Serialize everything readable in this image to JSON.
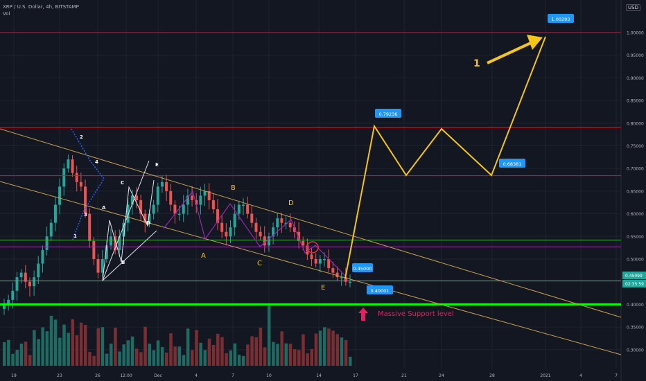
{
  "header": {
    "title": "XRP / U.S. Dollar, 4h, BITSTAMP",
    "vol_label": "Vol"
  },
  "currency_button": "USD",
  "colors": {
    "bg": "#131722",
    "up": "#26a69a",
    "down": "#ef5350",
    "red_line": "#b22833",
    "green_line": "#4caf50",
    "bright_green": "#00ff00",
    "yellow": "#f5c518",
    "channel": "#c8a14e",
    "label_bg": "#2196f3",
    "purple": "#9c27b0",
    "blue_dots": "#2962ff"
  },
  "chart_data": {
    "type": "candlestick",
    "y_ticks": [
      "1.00000",
      "0.95000",
      "0.90000",
      "0.85000",
      "0.80000",
      "0.75000",
      "0.70000",
      "0.65000",
      "0.60000",
      "0.55000",
      "0.50000",
      "0.45000",
      "0.40000",
      "0.35000",
      "0.30000"
    ],
    "y_range": [
      0.26,
      1.07
    ],
    "x_ticks": [
      "19",
      "23",
      "26",
      "12:00",
      "Dec",
      "4",
      "7",
      "10",
      "14",
      "17",
      "21",
      "24",
      "28",
      "2021",
      "4",
      "7"
    ],
    "horizontal_levels": [
      {
        "price": 1.0,
        "color": "red"
      },
      {
        "price": 0.79,
        "color": "red"
      },
      {
        "price": 0.684,
        "color": "red"
      },
      {
        "price": 0.542,
        "color": "green"
      },
      {
        "price": 0.527,
        "color": "purple"
      },
      {
        "price": 0.452,
        "color": "green"
      },
      {
        "price": 0.4,
        "color": "bright_green"
      }
    ],
    "price_labels": {
      "current": "0.45099",
      "countdown": "02:35:59"
    },
    "target_labels": [
      "1.00293",
      "0.79236",
      "0.68381",
      "0.40001",
      "0.45000"
    ],
    "annotations": {
      "support": "Massive Support level",
      "waves_left": [
        "1",
        "2",
        "3",
        "4"
      ],
      "waves_small": [
        "A",
        "B",
        "C",
        "D",
        "E"
      ],
      "waves_big": [
        "A",
        "B",
        "C",
        "D",
        "E"
      ],
      "arrow_label": "1"
    },
    "candles": [
      0.4,
      0.41,
      0.43,
      0.46,
      0.47,
      0.45,
      0.44,
      0.46,
      0.49,
      0.52,
      0.55,
      0.58,
      0.62,
      0.66,
      0.7,
      0.72,
      0.69,
      0.67,
      0.66,
      0.6,
      0.54,
      0.5,
      0.47,
      0.5,
      0.53,
      0.55,
      0.52,
      0.55,
      0.58,
      0.62,
      0.64,
      0.63,
      0.6,
      0.58,
      0.6,
      0.62,
      0.66,
      0.67,
      0.65,
      0.62,
      0.6,
      0.6,
      0.62,
      0.64,
      0.63,
      0.62,
      0.64,
      0.65,
      0.63,
      0.61,
      0.58,
      0.56,
      0.55,
      0.57,
      0.6,
      0.62,
      0.62,
      0.6,
      0.58,
      0.56,
      0.55,
      0.53,
      0.55,
      0.57,
      0.59,
      0.58,
      0.58,
      0.57,
      0.56,
      0.54,
      0.53,
      0.51,
      0.5,
      0.49,
      0.5,
      0.5,
      0.48,
      0.47,
      0.46,
      0.46,
      0.45,
      0.45
    ]
  }
}
